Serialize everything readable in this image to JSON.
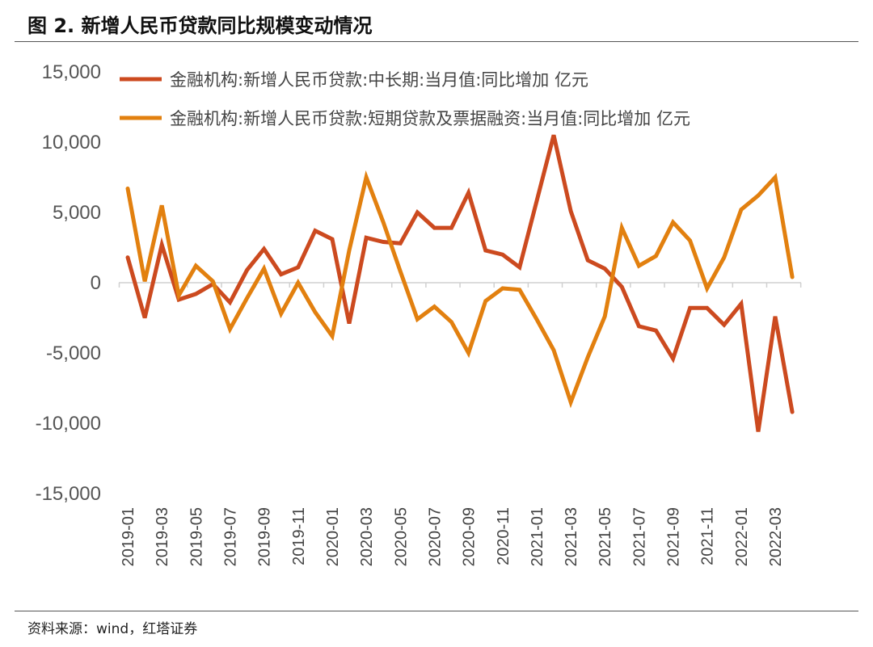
{
  "title": "图 2. 新增人民币贷款同比规模变动情况",
  "source": "资料来源：wind，红塔证券",
  "chart_data": {
    "type": "line",
    "title": "图 2. 新增人民币贷款同比规模变动情况",
    "xlabel": "",
    "ylabel": "",
    "ylim": [
      -15000,
      15000
    ],
    "yticks": [
      15000,
      10000,
      5000,
      0,
      -5000,
      -10000,
      -15000
    ],
    "ytick_labels": [
      "15,000",
      "10,000",
      "5,000",
      "0",
      "-5,000",
      "-10,000",
      "-15,000"
    ],
    "legend_position": "top",
    "x": [
      "2019-01",
      "2019-02",
      "2019-03",
      "2019-04",
      "2019-05",
      "2019-06",
      "2019-07",
      "2019-08",
      "2019-09",
      "2019-10",
      "2019-11",
      "2019-12",
      "2020-01",
      "2020-02",
      "2020-03",
      "2020-04",
      "2020-05",
      "2020-06",
      "2020-07",
      "2020-08",
      "2020-09",
      "2020-10",
      "2020-11",
      "2020-12",
      "2021-01",
      "2021-02",
      "2021-03",
      "2021-04",
      "2021-05",
      "2021-06",
      "2021-07",
      "2021-08",
      "2021-09",
      "2021-10",
      "2021-11",
      "2021-12",
      "2022-01",
      "2022-02",
      "2022-03",
      "2022-04"
    ],
    "xtick_labels": [
      "2019-01",
      "2019-03",
      "2019-05",
      "2019-07",
      "2019-09",
      "2019-11",
      "2020-01",
      "2020-03",
      "2020-05",
      "2020-07",
      "2020-09",
      "2020-11",
      "2021-01",
      "2021-03",
      "2021-05",
      "2021-07",
      "2021-09",
      "2021-11",
      "2022-01",
      "2022-03"
    ],
    "series": [
      {
        "name": "金融机构:新增人民币贷款:中长期:当月值:同比增加 亿元",
        "color": "#cc4a1f",
        "values": [
          1800,
          -2500,
          2700,
          -1200,
          -800,
          -100,
          -1400,
          900,
          2400,
          600,
          1100,
          3700,
          3100,
          -2900,
          3200,
          2900,
          2800,
          5000,
          3900,
          3900,
          6400,
          2300,
          2000,
          1100,
          5800,
          10500,
          5100,
          1600,
          1000,
          -300,
          -3100,
          -3400,
          -5400,
          -1800,
          -1800,
          -3000,
          -1500,
          -10600,
          -2400,
          -9200
        ]
      },
      {
        "name": "金融机构:新增人民币贷款:短期贷款及票据融资:当月值:同比增加 亿元",
        "color": "#e2800f",
        "values": [
          6700,
          100,
          5500,
          -900,
          1200,
          100,
          -3300,
          -1100,
          1000,
          -2200,
          0,
          -2100,
          -3800,
          2300,
          7500,
          4300,
          800,
          -2600,
          -1700,
          -2800,
          -5000,
          -1300,
          -400,
          -500,
          -2600,
          -4800,
          -8500,
          -5300,
          -2400,
          3900,
          1200,
          1900,
          4300,
          3000,
          -400,
          1800,
          5200,
          6200,
          7500,
          400
        ]
      }
    ]
  }
}
